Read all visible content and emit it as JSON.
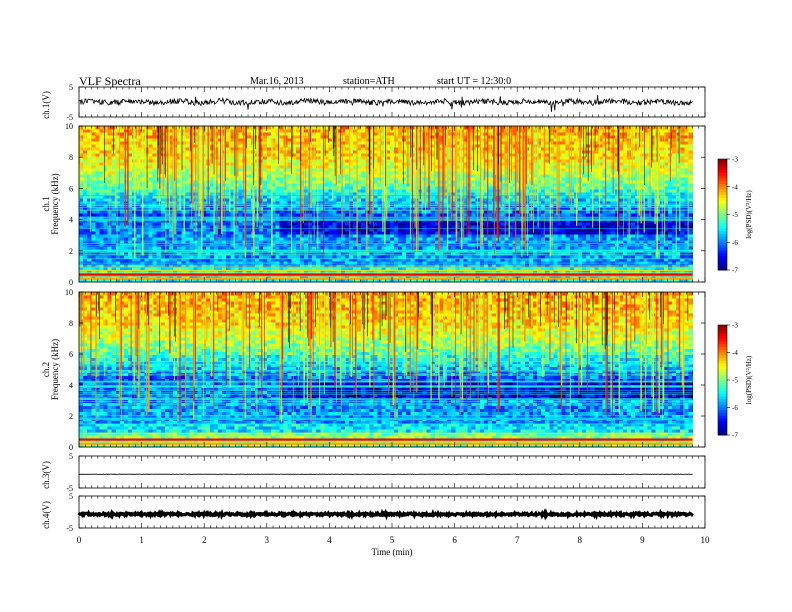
{
  "header": {
    "title": "VLF  Spectra",
    "date": "Mar.16, 2013",
    "station": "station=ATH",
    "start": "start  UT  =   12:30:0"
  },
  "chart_data": [
    {
      "id": "ch1_waveform",
      "type": "line",
      "ylabel": "ch.1(V)",
      "ylim": [
        -5,
        5
      ],
      "yticks": [
        5,
        -5
      ],
      "xlim": [
        0,
        10
      ],
      "x_end": 9.8,
      "baseline": 0.0,
      "noise_amplitude": 0.9,
      "color": "#000000"
    },
    {
      "id": "ch1_spectrogram",
      "type": "heatmap",
      "ylabel_lines": [
        "ch.1",
        "Frequency  (kHz)"
      ],
      "ylim": [
        0,
        10
      ],
      "yticks": [
        0,
        2,
        4,
        6,
        8,
        10
      ],
      "xlim": [
        0,
        10
      ],
      "x_end": 9.8,
      "colorbar": {
        "label": "log(PSD)(V²/Hz)",
        "range": [
          -7,
          -3
        ],
        "ticks": [
          "-3",
          "-4",
          "-5",
          "-6",
          "-7"
        ]
      }
    },
    {
      "id": "ch2_spectrogram",
      "type": "heatmap",
      "ylabel_lines": [
        "ch.2",
        "Frequency  (kHz)"
      ],
      "ylim": [
        0,
        10
      ],
      "yticks": [
        0,
        2,
        4,
        6,
        8,
        10
      ],
      "xlim": [
        0,
        10
      ],
      "x_end": 9.8,
      "colorbar": {
        "label": "log(PSD)(V²/Hz)",
        "range": [
          -7,
          -3
        ],
        "ticks": [
          "-3",
          "-4",
          "-5",
          "-6",
          "-7"
        ]
      }
    },
    {
      "id": "ch3_waveform",
      "type": "line",
      "ylabel": "ch.3(V)",
      "ylim": [
        -5,
        5
      ],
      "yticks": [
        5,
        -5
      ],
      "xlim": [
        0,
        10
      ],
      "x_end": 9.8,
      "baseline": -0.7,
      "noise_amplitude": 0.05,
      "color": "#000000"
    },
    {
      "id": "ch4_waveform",
      "type": "line",
      "ylabel": "ch.4(V)",
      "ylim": [
        -5,
        5
      ],
      "yticks": [
        5,
        -5
      ],
      "xlim": [
        0,
        10
      ],
      "x_end": 9.8,
      "baseline": -0.7,
      "noise_amplitude": 0.35,
      "color": "#000000"
    }
  ],
  "xaxis": {
    "label": "Time  (min)",
    "ticks": [
      "0",
      "1",
      "2",
      "3",
      "4",
      "5",
      "6",
      "7",
      "8",
      "9",
      "10"
    ]
  }
}
